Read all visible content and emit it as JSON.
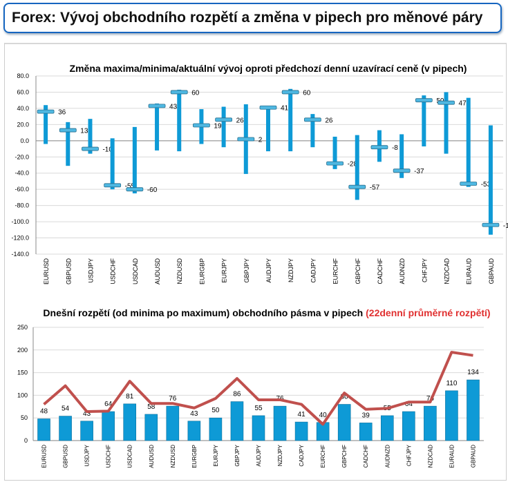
{
  "header": {
    "title": "Forex: Vývoj obchodního rozpětí a změna v pipech pro měnové páry"
  },
  "colors": {
    "bar": "#0e9ad6",
    "line": "#c0504d",
    "grid": "#d9d9d9",
    "header_border": "#1565c0"
  },
  "chart_data": [
    {
      "type": "range",
      "title": "Změna maxima/minima/aktuální vývoj oproti předchozí denní uzavírací ceně (v pipech)",
      "ylim": [
        -140,
        80
      ],
      "yticks": [
        "80.0",
        "60.0",
        "40.0",
        "20.0",
        "0.0",
        "-20.0",
        "-40.0",
        "-60.0",
        "-80.0",
        "-100.0",
        "-120.0",
        "-140.0"
      ],
      "grid": true,
      "categories": [
        "EURUSD",
        "GBPUSD",
        "USDJPY",
        "USDCHF",
        "USDCAD",
        "AUDUSD",
        "NZDUSD",
        "EURGBP",
        "EURJPY",
        "GBPJPY",
        "AUDJPY",
        "NZDJPY",
        "CADJPY",
        "EURCHF",
        "GBPCHF",
        "CADCHF",
        "AUDNZD",
        "CHFJPY",
        "NZDCAD",
        "EURAUD",
        "GBPAUD"
      ],
      "high": [
        44,
        23,
        27,
        3,
        17,
        46,
        63,
        39,
        42,
        45,
        41,
        64,
        33,
        5,
        7,
        13,
        8,
        56,
        60,
        53,
        19
      ],
      "low": [
        -4,
        -31,
        -16,
        -60,
        -65,
        -12,
        -13,
        -4,
        -8,
        -41,
        -13,
        -13,
        -8,
        -35,
        -73,
        -26,
        -46,
        -7,
        -16,
        -57,
        -116
      ],
      "current": [
        36,
        13,
        -10,
        -55,
        -60,
        43,
        60,
        19,
        26,
        2,
        41,
        60,
        26,
        -28,
        -57,
        -8,
        -37,
        50,
        47,
        -53,
        -104
      ]
    },
    {
      "type": "bar+line",
      "title": "Dnešní rozpětí (od minima po maximum) obchodního pásma v pipech",
      "title_highlight": "(22denní průměrné rozpětí)",
      "ylim": [
        0,
        250
      ],
      "yticks": [
        "0",
        "50",
        "100",
        "150",
        "200",
        "250"
      ],
      "grid": true,
      "categories": [
        "EURUSD",
        "GBPUSD",
        "USDJPY",
        "USDCHF",
        "USDCAD",
        "AUDUSD",
        "NZDUSD",
        "EURGBP",
        "EURJPY",
        "GBPJPY",
        "AUDJPY",
        "NZDJPY",
        "CADJPY",
        "EURCHF",
        "GBPCHF",
        "CADCHF",
        "AUDNZD",
        "CHFJPY",
        "NZDCAD",
        "EURAUD",
        "GBPAUD"
      ],
      "series": [
        {
          "name": "Dnešní rozpětí",
          "type": "bar",
          "values": [
            48,
            54,
            43,
            64,
            81,
            58,
            76,
            43,
            50,
            86,
            55,
            76,
            41,
            40,
            80,
            39,
            55,
            64,
            76,
            110,
            134
          ]
        },
        {
          "name": "22denní průměrné rozpětí",
          "type": "line",
          "values": [
            80,
            121,
            64,
            65,
            131,
            82,
            82,
            72,
            93,
            137,
            90,
            90,
            80,
            36,
            105,
            69,
            71,
            85,
            85,
            195,
            188
          ]
        }
      ]
    }
  ]
}
